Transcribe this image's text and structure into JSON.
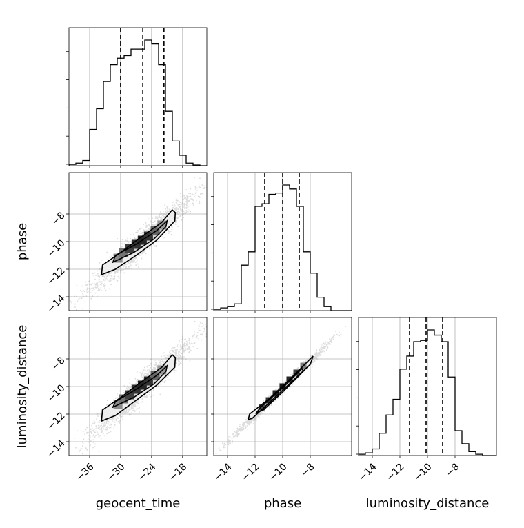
{
  "chart_data": {
    "type": "corner",
    "parameters": [
      "geocent_time",
      "phase",
      "luminosity_distance"
    ],
    "axes": {
      "geocent_time": {
        "label": "geocent_time",
        "range": [
          -40.0,
          -13.3
        ],
        "ticks": [
          -36,
          -30,
          -24,
          -18
        ],
        "tick_labels": [
          "−36",
          "−30",
          "−24",
          "−18"
        ]
      },
      "phase": {
        "label": "phase",
        "range": [
          -15.0,
          -5.0
        ],
        "ticks": [
          -14,
          -12,
          -10,
          -8
        ],
        "tick_labels": [
          "−14",
          "−12",
          "−10",
          "−8"
        ]
      },
      "luminosity_distance": {
        "label": "luminosity_distance",
        "range": [
          -15.0,
          -5.0
        ],
        "ticks": [
          -14,
          -12,
          -10,
          -8
        ],
        "tick_labels": [
          "−14",
          "−12",
          "−10",
          "−8"
        ]
      }
    },
    "histograms": {
      "geocent_time": {
        "bins_start": -40.0,
        "bin_width": 1.335,
        "counts": [
          0.01,
          0.02,
          0.04,
          0.28,
          0.44,
          0.65,
          0.78,
          0.83,
          0.85,
          0.9,
          0.9,
          0.97,
          0.94,
          0.78,
          0.42,
          0.19,
          0.08,
          0.02,
          0.005,
          0.0
        ],
        "quantiles": [
          -30.0,
          -25.7,
          -21.6
        ]
      },
      "phase": {
        "bins_start": -15.0,
        "bin_width": 0.5,
        "counts": [
          0.01,
          0.02,
          0.03,
          0.05,
          0.34,
          0.44,
          0.78,
          0.8,
          0.87,
          0.88,
          0.94,
          0.91,
          0.78,
          0.44,
          0.28,
          0.1,
          0.03,
          0.0,
          0.0,
          0.0
        ],
        "quantiles": [
          -11.3,
          -10.0,
          -8.8
        ]
      },
      "luminosity_distance": {
        "bins_start": -15.0,
        "bin_width": 0.5,
        "counts": [
          0.01,
          0.02,
          0.05,
          0.17,
          0.31,
          0.43,
          0.66,
          0.76,
          0.87,
          0.88,
          0.96,
          0.92,
          0.87,
          0.6,
          0.19,
          0.09,
          0.03,
          0.01,
          0.0,
          0.0
        ],
        "quantiles": [
          -11.3,
          -10.1,
          -8.9
        ]
      }
    },
    "joint_panels": [
      {
        "x": "geocent_time",
        "y": "phase",
        "contour_outer": [
          [
            -33.7,
            -12.4
          ],
          [
            -33.5,
            -11.7
          ],
          [
            -30.0,
            -10.8
          ],
          [
            -26.5,
            -9.8
          ],
          [
            -22.0,
            -8.6
          ],
          [
            -20.0,
            -7.7
          ],
          [
            -19.4,
            -7.9
          ],
          [
            -19.5,
            -8.5
          ],
          [
            -23.0,
            -9.9
          ],
          [
            -27.0,
            -11.0
          ],
          [
            -31.0,
            -12.0
          ]
        ],
        "contour_inner": [
          [
            -31.5,
            -11.5
          ],
          [
            -31.0,
            -11.0
          ],
          [
            -27.0,
            -10.2
          ],
          [
            -23.0,
            -9.2
          ],
          [
            -21.0,
            -8.5
          ],
          [
            -21.2,
            -8.9
          ],
          [
            -23.5,
            -9.8
          ],
          [
            -27.5,
            -10.8
          ]
        ],
        "density_cells": [
          [
            -30.5,
            -11.2,
            0.45
          ],
          [
            -29.5,
            -10.8,
            0.55
          ],
          [
            -28.2,
            -10.5,
            0.75
          ],
          [
            -27.0,
            -10.2,
            0.8
          ],
          [
            -25.8,
            -9.9,
            0.85
          ],
          [
            -24.6,
            -9.6,
            0.8
          ],
          [
            -23.3,
            -9.2,
            0.6
          ],
          [
            -22.0,
            -8.8,
            0.4
          ]
        ]
      },
      {
        "x": "geocent_time",
        "y": "luminosity_distance",
        "contour_outer": [
          [
            -33.7,
            -12.5
          ],
          [
            -33.5,
            -11.7
          ],
          [
            -30.0,
            -10.8
          ],
          [
            -26.5,
            -9.8
          ],
          [
            -22.0,
            -8.6
          ],
          [
            -20.0,
            -7.7
          ],
          [
            -19.4,
            -7.9
          ],
          [
            -19.5,
            -8.6
          ],
          [
            -23.0,
            -9.9
          ],
          [
            -27.0,
            -11.0
          ],
          [
            -31.0,
            -12.1
          ]
        ],
        "contour_inner": [
          [
            -31.5,
            -11.5
          ],
          [
            -31.0,
            -11.1
          ],
          [
            -27.0,
            -10.2
          ],
          [
            -23.0,
            -9.2
          ],
          [
            -21.0,
            -8.5
          ],
          [
            -21.2,
            -8.9
          ],
          [
            -23.5,
            -9.8
          ],
          [
            -27.5,
            -10.8
          ]
        ],
        "density_cells": [
          [
            -30.5,
            -11.3,
            0.45
          ],
          [
            -29.5,
            -10.9,
            0.55
          ],
          [
            -28.2,
            -10.6,
            0.75
          ],
          [
            -27.0,
            -10.2,
            0.8
          ],
          [
            -25.8,
            -9.9,
            0.85
          ],
          [
            -24.6,
            -9.6,
            0.8
          ],
          [
            -23.3,
            -9.2,
            0.6
          ],
          [
            -22.0,
            -8.8,
            0.4
          ]
        ]
      },
      {
        "x": "phase",
        "y": "luminosity_distance",
        "contour_outer": [
          [
            -12.5,
            -12.4
          ],
          [
            -12.4,
            -12.0
          ],
          [
            -11.0,
            -10.9
          ],
          [
            -9.5,
            -9.5
          ],
          [
            -8.0,
            -8.0
          ],
          [
            -7.8,
            -7.8
          ],
          [
            -8.0,
            -8.4
          ],
          [
            -9.5,
            -9.8
          ],
          [
            -11.0,
            -11.2
          ],
          [
            -12.2,
            -12.3
          ]
        ],
        "contour_inner": [
          [
            -11.9,
            -11.9
          ],
          [
            -11.6,
            -11.5
          ],
          [
            -10.0,
            -10.1
          ],
          [
            -8.6,
            -8.7
          ],
          [
            -8.5,
            -8.9
          ],
          [
            -10.0,
            -10.4
          ],
          [
            -11.4,
            -11.7
          ]
        ],
        "density_cells": [
          [
            -11.5,
            -11.5,
            0.7
          ],
          [
            -11.0,
            -11.0,
            0.8
          ],
          [
            -10.5,
            -10.5,
            0.85
          ],
          [
            -10.0,
            -10.0,
            0.9
          ],
          [
            -9.5,
            -9.5,
            0.85
          ],
          [
            -9.0,
            -9.0,
            0.75
          ],
          [
            -8.5,
            -8.5,
            0.5
          ]
        ]
      }
    ],
    "grid": true,
    "scatter_points": "light gray samples around the joint distributions"
  }
}
